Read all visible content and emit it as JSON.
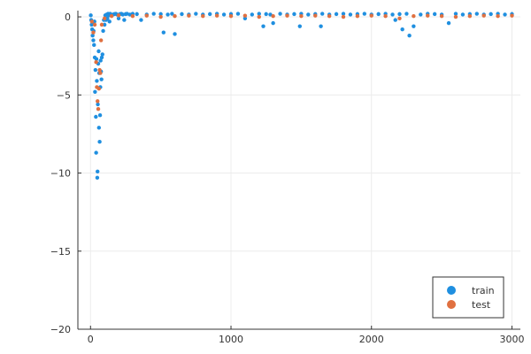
{
  "chart_data": {
    "type": "scatter",
    "title": "",
    "xlabel": "",
    "ylabel": "",
    "xlim": [
      -90,
      3060
    ],
    "ylim": [
      -20,
      0.4
    ],
    "xticks": [
      0,
      1000,
      2000,
      3000
    ],
    "xtick_labels": [
      "0",
      "1000",
      "2000",
      "3000"
    ],
    "yticks": [
      -20,
      -15,
      -10,
      -5,
      0
    ],
    "ytick_labels": [
      "−20",
      "−15",
      "−10",
      "−5",
      "0"
    ],
    "grid": true,
    "legend_position": "bottom-right",
    "series": [
      {
        "name": "train",
        "color": "#1f8fe0",
        "x": [
          2,
          5,
          8,
          10,
          12,
          15,
          18,
          20,
          22,
          25,
          28,
          30,
          32,
          35,
          38,
          40,
          42,
          45,
          48,
          50,
          52,
          55,
          58,
          60,
          62,
          65,
          68,
          70,
          72,
          75,
          78,
          80,
          85,
          90,
          95,
          100,
          105,
          110,
          115,
          120,
          125,
          130,
          135,
          140,
          150,
          160,
          170,
          180,
          190,
          200,
          210,
          220,
          230,
          240,
          250,
          260,
          280,
          300,
          330,
          360,
          400,
          450,
          500,
          520,
          550,
          580,
          600,
          650,
          700,
          750,
          800,
          850,
          900,
          950,
          1000,
          1050,
          1100,
          1150,
          1200,
          1230,
          1250,
          1280,
          1300,
          1350,
          1400,
          1450,
          1490,
          1500,
          1550,
          1600,
          1640,
          1650,
          1700,
          1750,
          1800,
          1850,
          1900,
          1950,
          2000,
          2050,
          2100,
          2150,
          2170,
          2200,
          2220,
          2250,
          2270,
          2300,
          2350,
          2400,
          2450,
          2500,
          2550,
          2600,
          2650,
          2700,
          2750,
          2800,
          2850,
          2900,
          2950,
          3000
        ],
        "y": [
          0.1,
          -0.2,
          -0.5,
          -0.3,
          -0.8,
          -1.2,
          -0.4,
          -1.5,
          -0.9,
          -1.8,
          -0.3,
          -2.6,
          -4.8,
          -3.4,
          -6.4,
          -8.7,
          -2.7,
          -4.1,
          -10.3,
          -9.9,
          -5.6,
          -3.0,
          -2.2,
          -7.1,
          -3.6,
          -8.0,
          -6.3,
          -4.5,
          -2.8,
          -3.5,
          -4.0,
          -2.6,
          -2.4,
          -0.9,
          -0.2,
          -0.5,
          0.1,
          -0.2,
          0.15,
          -0.1,
          0.2,
          0.1,
          -0.3,
          0.2,
          0.1,
          0.15,
          0.18,
          0.2,
          0.15,
          -0.1,
          0.18,
          0.2,
          0.15,
          -0.2,
          0.18,
          0.2,
          0.15,
          0.2,
          0.18,
          -0.2,
          0.15,
          0.2,
          0.18,
          -1.0,
          0.15,
          0.2,
          -1.1,
          0.18,
          0.15,
          0.2,
          0.15,
          0.18,
          0.2,
          0.15,
          0.18,
          0.2,
          -0.1,
          0.15,
          0.2,
          -0.6,
          0.18,
          0.15,
          -0.4,
          0.2,
          0.15,
          0.18,
          -0.6,
          0.2,
          0.15,
          0.18,
          -0.6,
          0.2,
          0.15,
          0.18,
          0.2,
          0.15,
          0.18,
          0.2,
          0.15,
          0.18,
          0.2,
          0.15,
          -0.2,
          0.18,
          -0.8,
          0.2,
          -1.2,
          -0.6,
          0.15,
          0.2,
          0.18,
          0.15,
          -0.4,
          0.2,
          0.15,
          0.18,
          0.2,
          0.15,
          0.18,
          0.2,
          0.15,
          0.18
        ]
      },
      {
        "name": "test",
        "color": "#e07040",
        "x": [
          10,
          20,
          30,
          40,
          45,
          50,
          55,
          60,
          65,
          70,
          75,
          80,
          100,
          150,
          200,
          300,
          400,
          500,
          600,
          700,
          800,
          900,
          1000,
          1100,
          1200,
          1300,
          1400,
          1500,
          1600,
          1700,
          1800,
          1900,
          2000,
          2100,
          2200,
          2300,
          2400,
          2500,
          2600,
          2700,
          2800,
          2900,
          3000
        ],
        "y": [
          -0.3,
          -1.0,
          -0.5,
          -2.9,
          -4.5,
          -5.4,
          -5.9,
          -4.6,
          -3.4,
          -3.6,
          -1.5,
          -0.5,
          -0.1,
          0.05,
          0.1,
          0.05,
          0.08,
          0.0,
          0.05,
          0.08,
          0.05,
          0.08,
          0.05,
          0.08,
          0.0,
          0.05,
          0.08,
          0.05,
          0.08,
          0.05,
          0.0,
          0.05,
          0.08,
          0.05,
          -0.1,
          0.05,
          0.08,
          0.05,
          0.0,
          0.05,
          0.08,
          0.05,
          0.08
        ]
      }
    ]
  }
}
